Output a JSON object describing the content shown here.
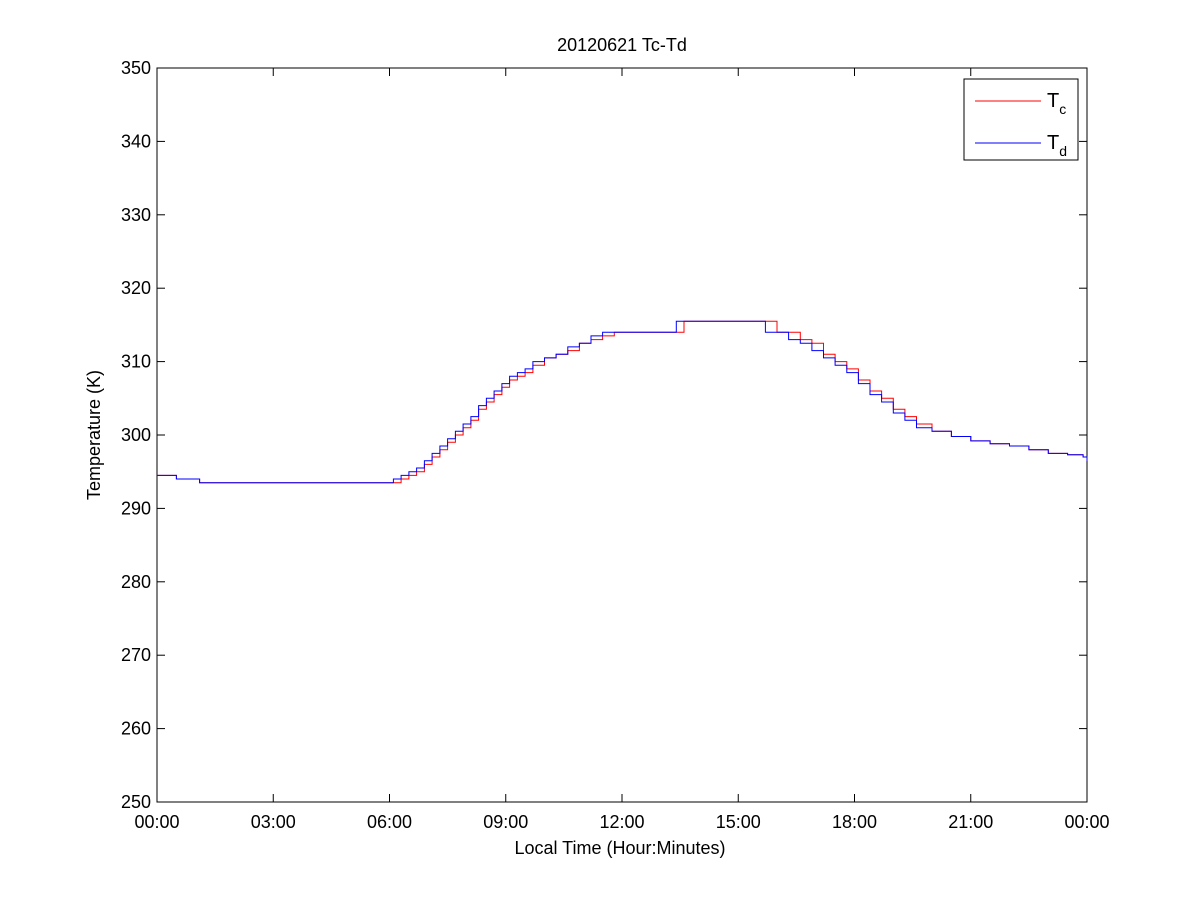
{
  "chart_data": {
    "type": "line",
    "title": "20120621 Tc-Td",
    "xlabel": "Local Time (Hour:Minutes)",
    "ylabel": "Temperature (K)",
    "xlim": [
      0,
      24
    ],
    "ylim": [
      250,
      350
    ],
    "x_tick_values": [
      0,
      3,
      6,
      9,
      12,
      15,
      18,
      21,
      24
    ],
    "x_tick_labels": [
      "00:00",
      "03:00",
      "06:00",
      "09:00",
      "12:00",
      "15:00",
      "18:00",
      "21:00",
      "00:00"
    ],
    "y_tick_values": [
      250,
      260,
      270,
      280,
      290,
      300,
      310,
      320,
      330,
      340,
      350
    ],
    "y_tick_labels": [
      "250",
      "260",
      "270",
      "280",
      "290",
      "300",
      "310",
      "320",
      "330",
      "340",
      "350"
    ],
    "grid": false,
    "legend_position": "top-right",
    "series": [
      {
        "name": "T_c",
        "legend_main": "T",
        "legend_sub": "c",
        "color": "#ff0000",
        "x": [
          0,
          0.5,
          1.1,
          2,
          3,
          4,
          5,
          5.9,
          6.1,
          6.3,
          6.5,
          6.7,
          6.9,
          7.1,
          7.3,
          7.5,
          7.7,
          7.9,
          8.1,
          8.3,
          8.5,
          8.7,
          8.9,
          9.1,
          9.3,
          9.5,
          9.7,
          10.0,
          10.3,
          10.6,
          10.9,
          11.2,
          11.5,
          11.8,
          12.2,
          12.6,
          13.0,
          13.4,
          13.6,
          13.9,
          14.2,
          14.5,
          14.8,
          15.1,
          15.4,
          15.7,
          16.0,
          16.3,
          16.6,
          16.9,
          17.2,
          17.5,
          17.8,
          18.1,
          18.4,
          18.7,
          19.0,
          19.3,
          19.6,
          20.0,
          20.5,
          21.0,
          21.5,
          22.0,
          22.5,
          23.0,
          23.5,
          23.9,
          24.0
        ],
        "y": [
          294.5,
          294.0,
          293.5,
          293.5,
          293.5,
          293.5,
          293.5,
          293.5,
          293.5,
          294.0,
          294.5,
          295.0,
          296.0,
          297.0,
          298.0,
          299.0,
          300.0,
          301.0,
          302.0,
          303.5,
          304.5,
          305.5,
          306.5,
          307.5,
          308.0,
          308.5,
          309.5,
          310.5,
          311.0,
          311.5,
          312.5,
          313.0,
          313.5,
          314.0,
          314.0,
          314.0,
          314.0,
          314.0,
          315.5,
          315.5,
          315.5,
          315.5,
          315.5,
          315.5,
          315.5,
          315.5,
          314.0,
          314.0,
          313.0,
          312.5,
          311.0,
          310.0,
          309.0,
          307.5,
          306.0,
          305.0,
          303.5,
          302.5,
          301.5,
          300.5,
          299.8,
          299.2,
          298.8,
          298.5,
          298.0,
          297.5,
          297.3,
          297.0,
          296.5
        ]
      },
      {
        "name": "T_d",
        "legend_main": "T",
        "legend_sub": "d",
        "color": "#0000ff",
        "x": [
          0,
          0.5,
          1.1,
          2,
          3,
          4,
          5,
          5.9,
          6.1,
          6.3,
          6.5,
          6.7,
          6.9,
          7.1,
          7.3,
          7.5,
          7.7,
          7.9,
          8.1,
          8.3,
          8.5,
          8.7,
          8.9,
          9.1,
          9.3,
          9.5,
          9.7,
          10.0,
          10.3,
          10.6,
          10.9,
          11.2,
          11.5,
          11.8,
          12.2,
          12.6,
          13.0,
          13.4,
          13.6,
          13.9,
          14.2,
          14.5,
          14.8,
          15.1,
          15.4,
          15.7,
          16.0,
          16.3,
          16.6,
          16.9,
          17.2,
          17.5,
          17.8,
          18.1,
          18.4,
          18.7,
          19.0,
          19.3,
          19.6,
          20.0,
          20.5,
          21.0,
          21.5,
          22.0,
          22.5,
          23.0,
          23.5,
          23.9,
          24.0
        ],
        "y": [
          294.5,
          294.0,
          293.5,
          293.5,
          293.5,
          293.5,
          293.5,
          293.5,
          294.0,
          294.5,
          295.0,
          295.5,
          296.5,
          297.5,
          298.5,
          299.5,
          300.5,
          301.5,
          302.5,
          304.0,
          305.0,
          306.0,
          307.0,
          308.0,
          308.5,
          309.0,
          310.0,
          310.5,
          311.0,
          312.0,
          312.5,
          313.5,
          314.0,
          314.0,
          314.0,
          314.0,
          314.0,
          315.5,
          315.5,
          315.5,
          315.5,
          315.5,
          315.5,
          315.5,
          315.5,
          314.0,
          314.0,
          313.0,
          312.5,
          311.5,
          310.5,
          309.5,
          308.5,
          307.0,
          305.5,
          304.5,
          303.0,
          302.0,
          301.0,
          300.5,
          299.8,
          299.2,
          298.8,
          298.5,
          298.0,
          297.5,
          297.3,
          297.0,
          296.5
        ]
      }
    ]
  }
}
